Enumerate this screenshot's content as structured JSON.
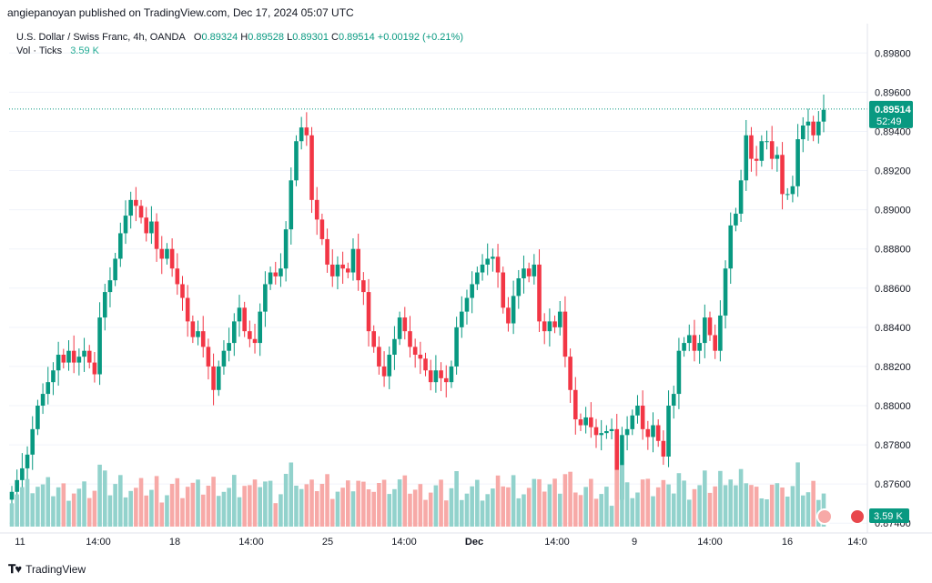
{
  "byline": "angiepanoyan published on TradingView.com, Dec 17, 2024 05:07 UTC",
  "legend": {
    "title": "U.S. Dollar / Swiss Franc, 4h, OANDA",
    "o_label": "O",
    "o": "0.89324",
    "h_label": "H",
    "h": "0.89528",
    "l_label": "L",
    "l": "0.89301",
    "c_label": "C",
    "c": "0.89514",
    "change": "+0.00192 (+0.21%)",
    "vol_label": "Vol · Ticks",
    "vol_value": "3.59 K"
  },
  "price_tag": {
    "price": "0.89514",
    "countdown": "52:49"
  },
  "vol_tag": "3.59 K",
  "brand": "TradingView",
  "colors": {
    "up": "#089981",
    "down": "#f23645",
    "up_vol": "#92d2cc",
    "down_vol": "#f7a9a7",
    "grid": "#f0f3fa",
    "axis_text": "#131722"
  },
  "chart_data": {
    "type": "candlestick",
    "symbol": "USDCHF",
    "timeframe": "4h",
    "ylim": [
      0.8735,
      0.8995
    ],
    "y_ticks": [
      "0.89800",
      "0.89600",
      "0.89400",
      "0.89200",
      "0.89000",
      "0.88800",
      "0.88600",
      "0.88400",
      "0.88200",
      "0.88000",
      "0.87800",
      "0.87600",
      "0.87400"
    ],
    "x_ticks": [
      "11",
      "14:00",
      "18",
      "14:00",
      "25",
      "14:00",
      "Dec",
      "14:00",
      "9",
      "14:00",
      "16",
      "14:0"
    ],
    "last_price": 0.89514,
    "closes": [
      0.8756,
      0.8762,
      0.8768,
      0.8775,
      0.8788,
      0.88,
      0.8806,
      0.8812,
      0.8818,
      0.8826,
      0.8822,
      0.8828,
      0.8822,
      0.8825,
      0.8828,
      0.8822,
      0.8816,
      0.8845,
      0.8858,
      0.8864,
      0.8875,
      0.8888,
      0.8897,
      0.8905,
      0.8902,
      0.8896,
      0.8888,
      0.8894,
      0.888,
      0.8875,
      0.888,
      0.887,
      0.8862,
      0.8855,
      0.8843,
      0.8835,
      0.8838,
      0.883,
      0.882,
      0.8808,
      0.882,
      0.8828,
      0.8832,
      0.8843,
      0.885,
      0.8838,
      0.8834,
      0.8832,
      0.8848,
      0.8862,
      0.8868,
      0.8866,
      0.887,
      0.889,
      0.8915,
      0.8935,
      0.8942,
      0.8938,
      0.8905,
      0.8895,
      0.8885,
      0.8872,
      0.8866,
      0.8872,
      0.887,
      0.8868,
      0.888,
      0.8864,
      0.8858,
      0.8838,
      0.883,
      0.882,
      0.8815,
      0.8826,
      0.8834,
      0.8845,
      0.8838,
      0.883,
      0.8826,
      0.8824,
      0.8818,
      0.8812,
      0.8818,
      0.8814,
      0.8812,
      0.882,
      0.884,
      0.8848,
      0.8855,
      0.8862,
      0.8868,
      0.8872,
      0.8875,
      0.8876,
      0.8868,
      0.885,
      0.8842,
      0.8856,
      0.8865,
      0.887,
      0.8866,
      0.8872,
      0.8843,
      0.8838,
      0.8843,
      0.884,
      0.8848,
      0.8825,
      0.8808,
      0.8793,
      0.879,
      0.8794,
      0.8789,
      0.8785,
      0.8786,
      0.8787,
      0.8788,
      0.8752,
      0.8785,
      0.8788,
      0.8795,
      0.88,
      0.8788,
      0.8784,
      0.879,
      0.8782,
      0.8774,
      0.88,
      0.8806,
      0.8828,
      0.8832,
      0.8836,
      0.8828,
      0.8832,
      0.8845,
      0.8836,
      0.8828,
      0.8846,
      0.887,
      0.8892,
      0.8898,
      0.8915,
      0.8938,
      0.8926,
      0.8925,
      0.8935,
      0.8935,
      0.8926,
      0.8928,
      0.8908,
      0.8908,
      0.8912,
      0.8936,
      0.8943,
      0.8945,
      0.8938,
      0.8945,
      0.8951
    ],
    "volume_ticks_k_last": 3.59
  }
}
